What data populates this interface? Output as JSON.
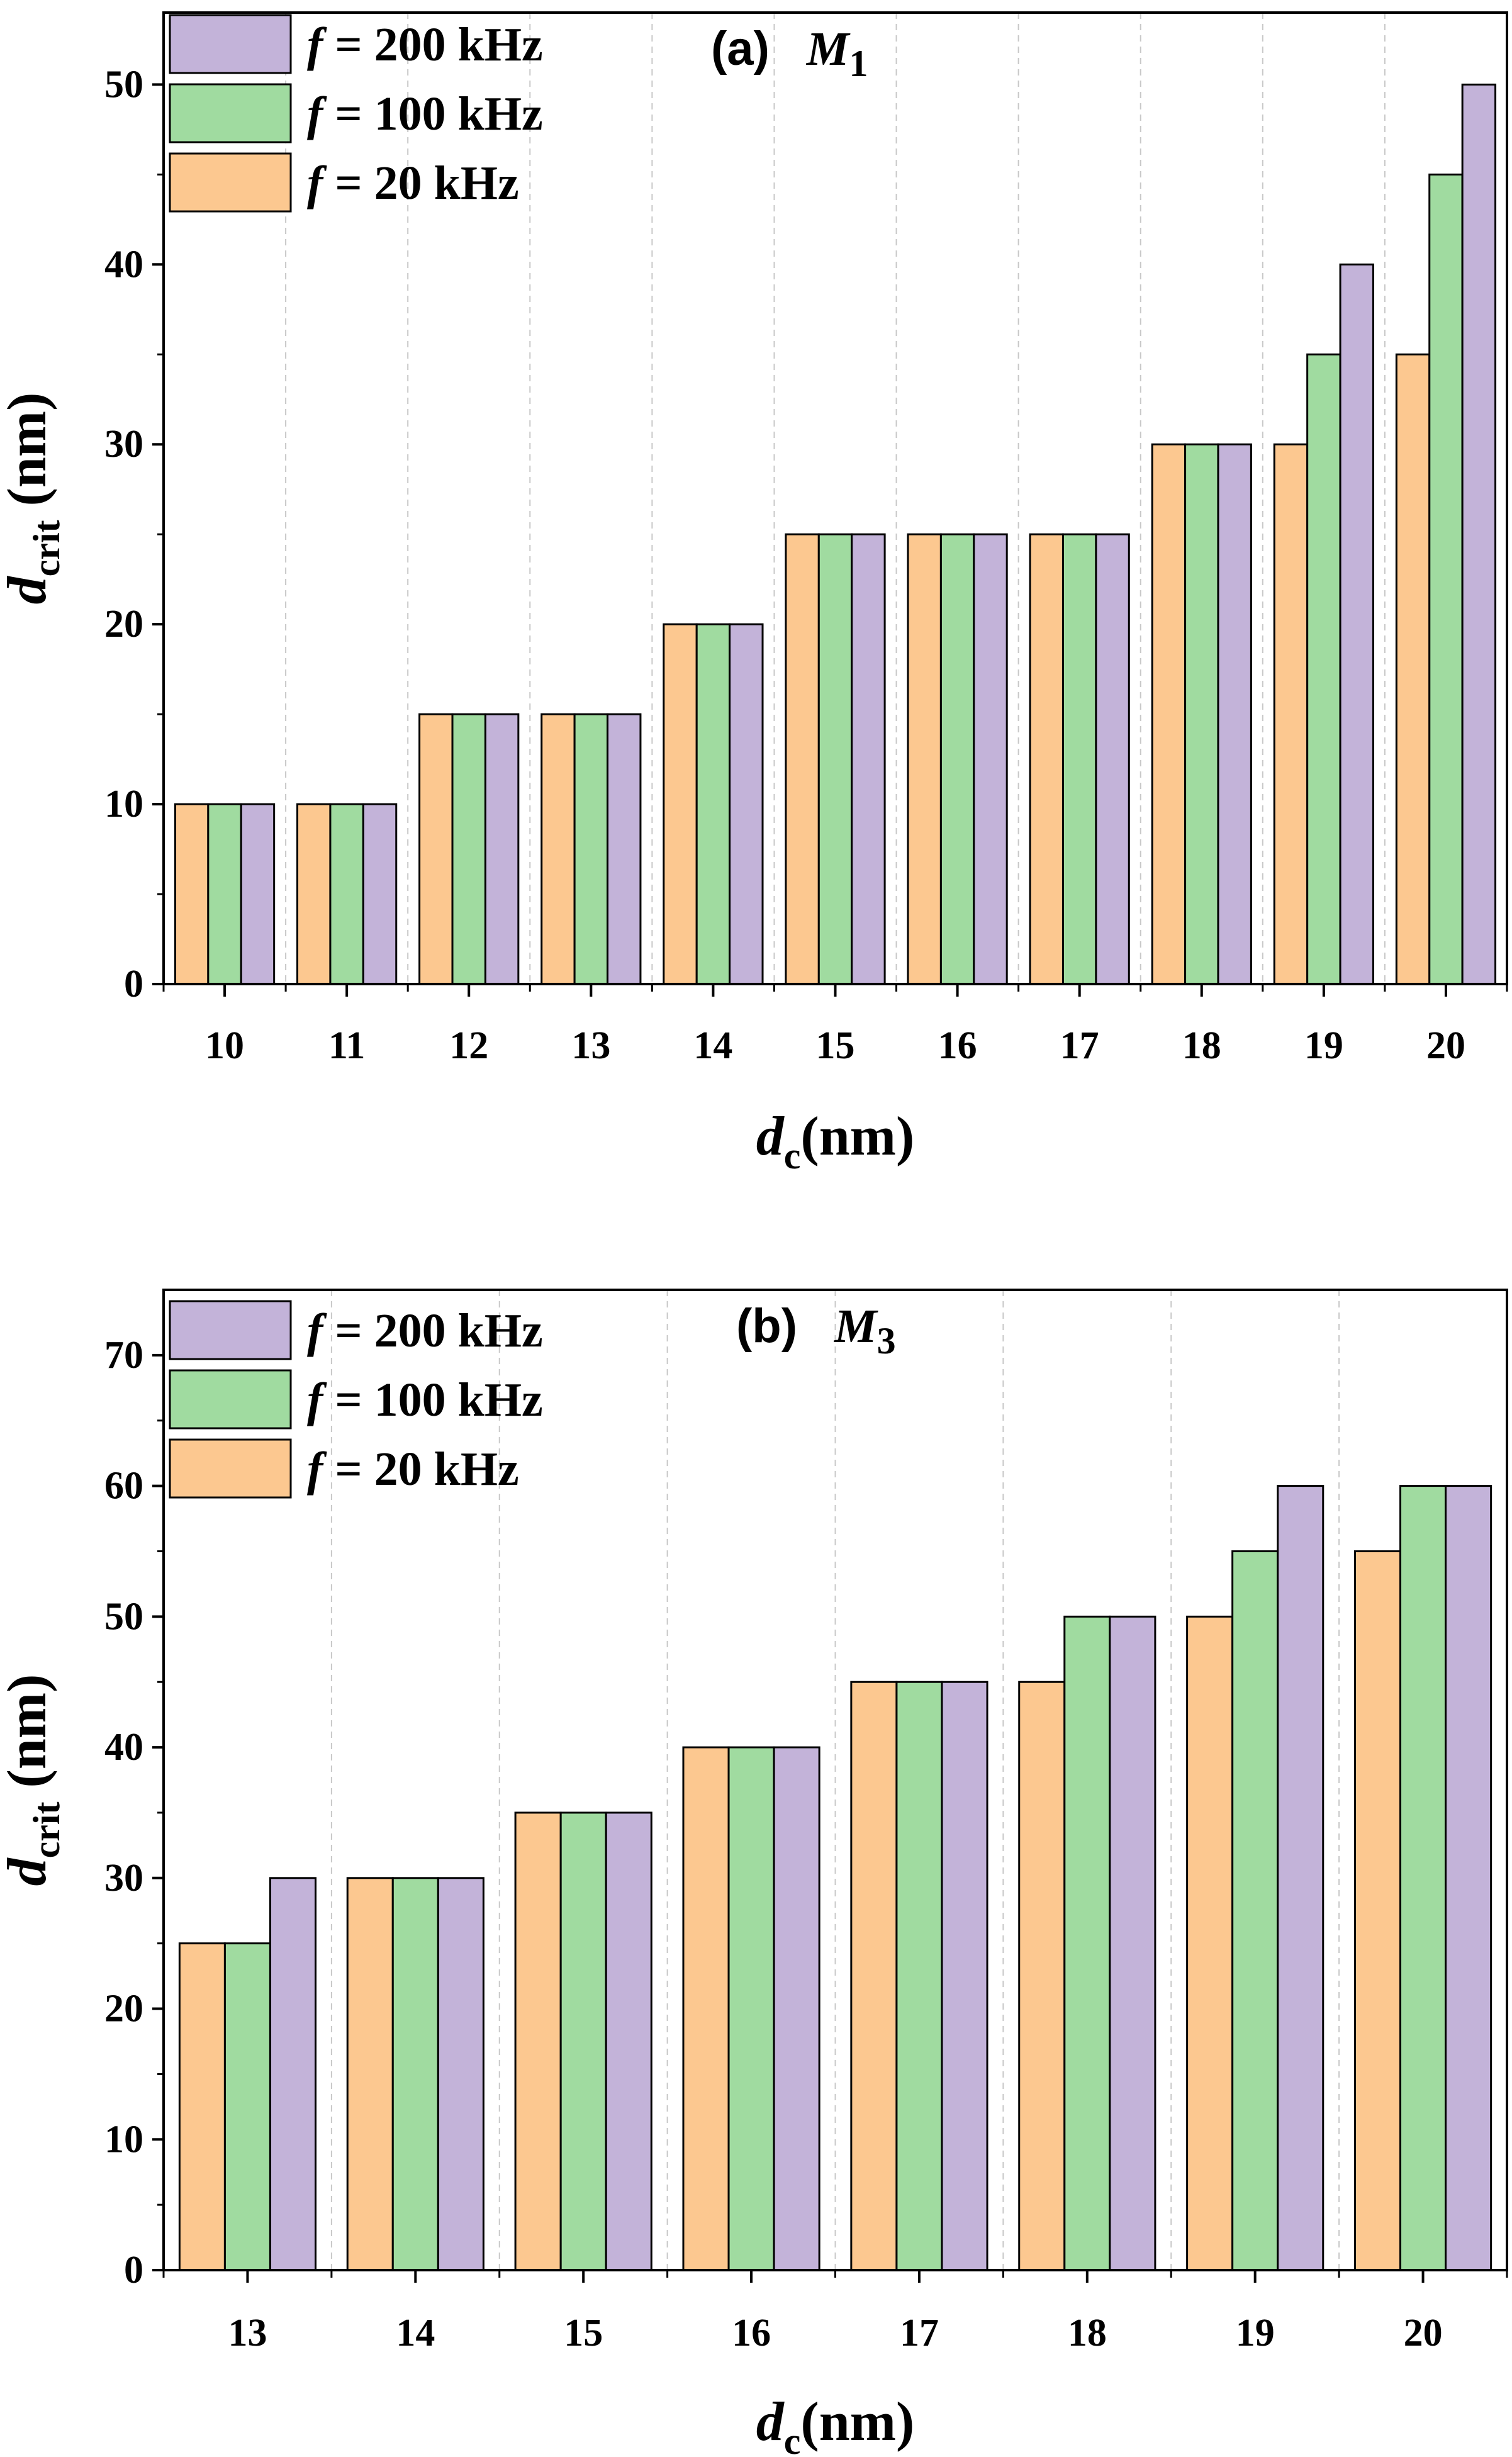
{
  "chart_data": [
    {
      "type": "bar",
      "panel": "(a)",
      "material": "M",
      "material_sub": "1",
      "categories": [
        "10",
        "11",
        "12",
        "13",
        "14",
        "15",
        "16",
        "17",
        "18",
        "19",
        "20"
      ],
      "series": [
        {
          "name": "f = 20 kHz",
          "freq": "= 20 kHz",
          "color": "#fcc890",
          "values": [
            10,
            10,
            15,
            15,
            20,
            25,
            25,
            25,
            30,
            30,
            35
          ]
        },
        {
          "name": "f = 100 kHz",
          "freq": "= 100 kHz",
          "color": "#a0dba0",
          "values": [
            10,
            10,
            15,
            15,
            20,
            25,
            25,
            25,
            30,
            35,
            45
          ]
        },
        {
          "name": "f = 200 kHz",
          "freq": "= 200 kHz",
          "color": "#c3b3d9",
          "values": [
            10,
            10,
            15,
            15,
            20,
            25,
            25,
            25,
            30,
            40,
            50
          ]
        }
      ],
      "yticks": [
        0,
        10,
        20,
        30,
        40,
        50
      ],
      "ylim": [
        0,
        54
      ],
      "xlabel": "d_c(nm)",
      "ylabel": "d_crit (nm)"
    },
    {
      "type": "bar",
      "panel": "(b)",
      "material": "M",
      "material_sub": "3",
      "categories": [
        "13",
        "14",
        "15",
        "16",
        "17",
        "18",
        "19",
        "20"
      ],
      "series": [
        {
          "name": "f = 20 kHz",
          "freq": "= 20 kHz",
          "color": "#fcc890",
          "values": [
            25,
            30,
            35,
            40,
            45,
            45,
            50,
            55
          ]
        },
        {
          "name": "f = 100 kHz",
          "freq": "= 100 kHz",
          "color": "#a0dba0",
          "values": [
            25,
            30,
            35,
            40,
            45,
            50,
            55,
            60
          ]
        },
        {
          "name": "f = 200 kHz",
          "freq": "= 200 kHz",
          "color": "#c3b3d9",
          "values": [
            30,
            30,
            35,
            40,
            45,
            50,
            60,
            60
          ]
        }
      ],
      "yticks": [
        0,
        10,
        20,
        30,
        40,
        50,
        60,
        70
      ],
      "ylim": [
        0,
        75
      ],
      "xlabel": "d_c(nm)",
      "ylabel": "d_crit (nm)"
    }
  ],
  "axis_text": {
    "x_var": "d",
    "x_sub": "c",
    "x_unit": "(nm)",
    "y_var": "d",
    "y_sub": "crit",
    "y_unit": " (nm)",
    "f_symbol": "f"
  }
}
